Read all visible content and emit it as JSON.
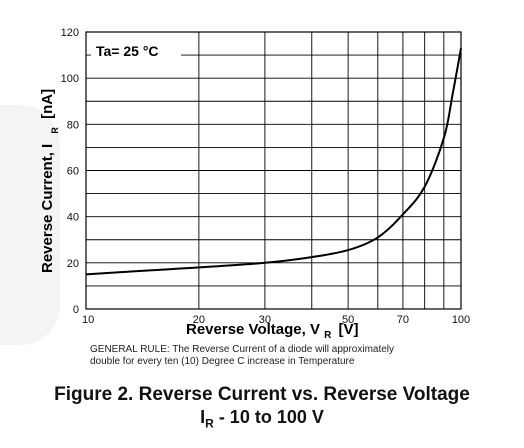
{
  "chart_data": {
    "type": "line",
    "x_scale": "log",
    "x": [
      10,
      15,
      20,
      30,
      40,
      50,
      60,
      70,
      80,
      90,
      95,
      100
    ],
    "series": [
      {
        "values": [
          15,
          16.8,
          18,
          20,
          22.5,
          25.5,
          31,
          41,
          53,
          74,
          93,
          113
        ]
      }
    ],
    "xlim": [
      10,
      100
    ],
    "ylim": [
      0,
      120
    ],
    "x_ticks": [
      10,
      20,
      30,
      50,
      70,
      100
    ],
    "y_ticks": [
      0,
      20,
      40,
      60,
      80,
      100,
      120
    ],
    "grid": true,
    "ylabel_main": "Reverse Current, I",
    "ylabel_sub": "R",
    "ylabel_unit": "[nA]",
    "xlabel_main": "Reverse Voltage, V",
    "xlabel_sub": "R",
    "xlabel_unit": "[V]",
    "annotation": "Ta= 25 °C"
  },
  "note_line1": "GENERAL RULE: The Reverse Current of a diode will approximately",
  "note_line2": "double for every ten (10) Degree C increase in Temperature",
  "figure_title": "Figure 2. Reverse Current vs. Reverse Voltage",
  "figure_subtitle_main": "I",
  "figure_subtitle_sub": "R",
  "figure_subtitle_rest": " - 10 to 100 V"
}
